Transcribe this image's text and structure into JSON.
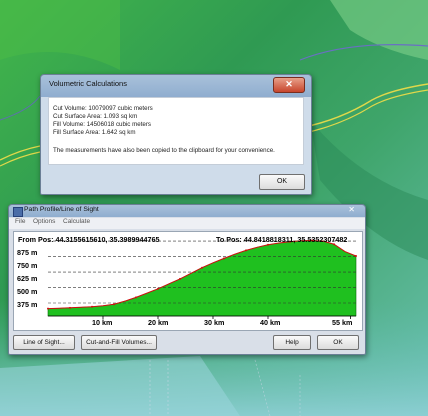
{
  "volumetric": {
    "title": "Volumetric Calculations",
    "close_symbol": "✕",
    "lines": [
      "Cut Volume: 10079097 cubic meters",
      "Cut Surface Area: 1.093 sq km",
      "Fill Volume: 14506018 cubic meters",
      "Fill Surface Area: 1.642 sq km",
      "",
      "The measurements have also been copied to the clipboard for your convenience."
    ],
    "ok_label": "OK"
  },
  "profile": {
    "title": "Path Profile/Line of Sight",
    "close_symbol": "✕",
    "menu": [
      "File",
      "Options",
      "Calculate"
    ],
    "from_pos": "From Pos: 44.3155615610, 35.3989944765",
    "to_pos": "To Pos: 44.8418818311, 35.5352307482",
    "buttons": {
      "line_of_sight": "Line of Sight...",
      "cut_fill": "Cut-and-Fill Volumes...",
      "help": "Help",
      "ok": "OK"
    },
    "fill_color": "#1fc01f",
    "line_color": "#d01010"
  },
  "chart_data": {
    "type": "area",
    "y_tick_labels": [
      "875 m",
      "750 m",
      "625 m",
      "500 m",
      "375 m"
    ],
    "x_tick_labels": [
      "10 km",
      "20 km",
      "30 km",
      "40 km",
      "55 km"
    ],
    "yticks": [
      875,
      750,
      625,
      500,
      375
    ],
    "xticks": [
      10,
      20,
      30,
      40,
      55
    ],
    "ylim": [
      270,
      900
    ],
    "xlim": [
      0,
      56
    ],
    "x": [
      0,
      2,
      4,
      6,
      8,
      10,
      12,
      14,
      16,
      18,
      20,
      22,
      24,
      26,
      28,
      30,
      32,
      34,
      36,
      38,
      40,
      42,
      44,
      46,
      48,
      50,
      52,
      54,
      56
    ],
    "series": [
      {
        "values": [
          330,
          332,
          336,
          340,
          345,
          352,
          365,
          390,
          420,
          455,
          490,
          530,
          570,
          615,
          660,
          700,
          735,
          770,
          800,
          825,
          845,
          860,
          870,
          878,
          880,
          875,
          850,
          790,
          755
        ]
      }
    ],
    "grid": "dashed horizontal",
    "legend": "none"
  }
}
